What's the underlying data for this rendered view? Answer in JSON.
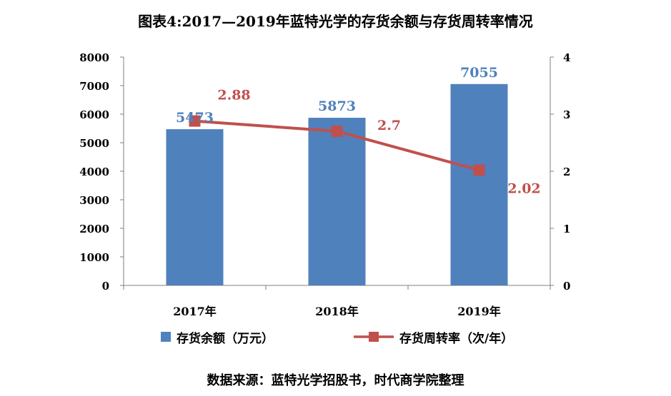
{
  "chart_data": {
    "type": "bar+line",
    "title": "图表4:2017—2019年蓝特光学的存货余额与存货周转率情况",
    "categories": [
      "2017年",
      "2018年",
      "2019年"
    ],
    "series": [
      {
        "name": "存货余额（万元）",
        "kind": "bar",
        "axis": "left",
        "color": "#4f81bd",
        "values": [
          5473,
          5873,
          7055
        ],
        "labels": [
          "5473",
          "5873",
          "7055"
        ]
      },
      {
        "name": "存货周转率（次/年）",
        "kind": "line",
        "axis": "right",
        "color": "#c0504d",
        "values": [
          2.88,
          2.7,
          2.02
        ],
        "labels": [
          "2.88",
          "2.7",
          "2.02"
        ]
      }
    ],
    "y_left": {
      "min": 0,
      "max": 8000,
      "ticks": [
        "0",
        "1000",
        "2000",
        "3000",
        "4000",
        "5000",
        "6000",
        "7000",
        "8000"
      ]
    },
    "y_right": {
      "min": 0,
      "max": 4,
      "ticks": [
        "0",
        "1",
        "2",
        "3",
        "4"
      ]
    },
    "legend_position": "bottom",
    "grid": false
  },
  "source": "数据来源：蓝特光学招股书，时代商学院整理"
}
